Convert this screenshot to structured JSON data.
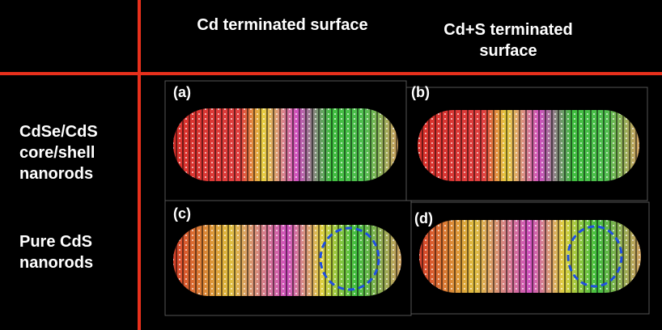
{
  "header": {
    "columns": [
      "Cd terminated surface",
      "Cd+S terminated surface"
    ]
  },
  "rows": [
    {
      "label": "CdSe/CdS core/shell nanorods",
      "panels": [
        "(a)",
        "(b)"
      ]
    },
    {
      "label": "Pure CdS nanorods",
      "panels": [
        "(c)",
        "(d)"
      ]
    }
  ]
}
